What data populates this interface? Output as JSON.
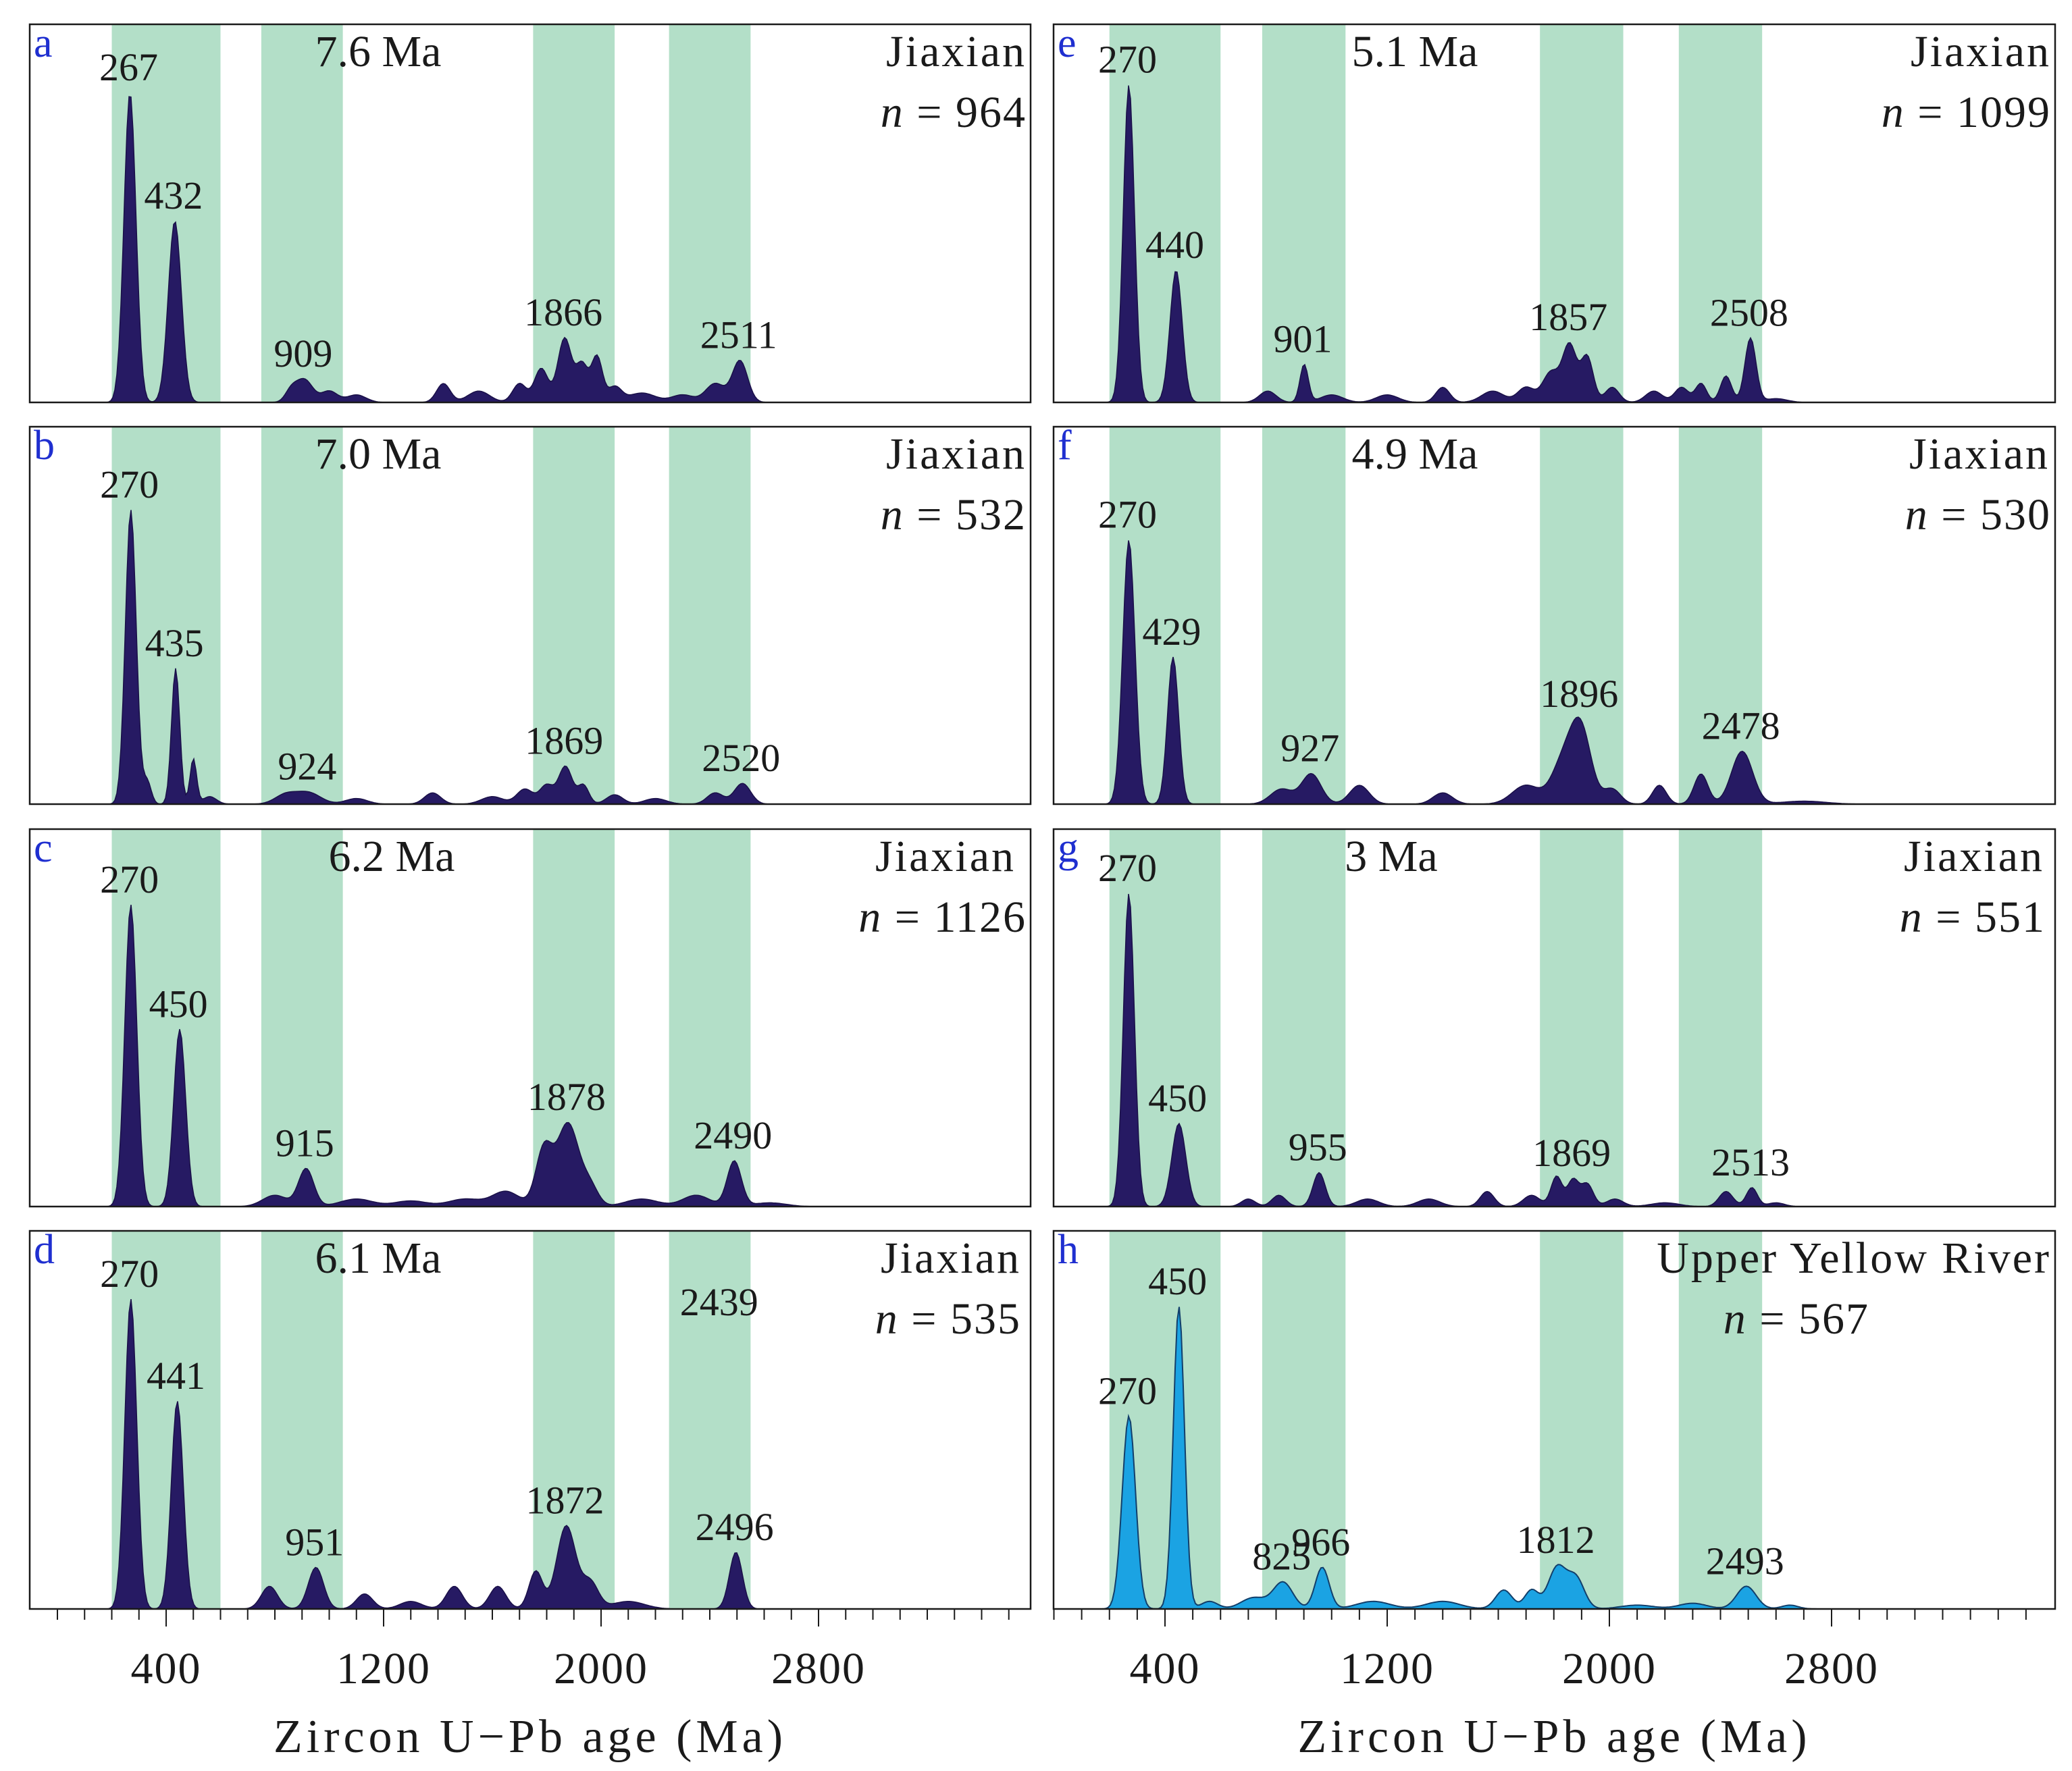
{
  "chart_data": [
    {
      "type": "area",
      "panel": "a",
      "title": "7.6 Ma",
      "site": "Jiaxian",
      "n_label": "n",
      "n_value": "= 964",
      "color": "#261a63",
      "peaks": [
        {
          "age": 267,
          "height": 0.82,
          "width": 22,
          "label": "267"
        },
        {
          "age": 432,
          "height": 0.48,
          "width": 24,
          "label": "432"
        },
        {
          "age": 860,
          "height": 0.03,
          "width": 22
        },
        {
          "age": 909,
          "height": 0.06,
          "width": 30,
          "label": "909"
        },
        {
          "age": 1000,
          "height": 0.03,
          "width": 30
        },
        {
          "age": 1100,
          "height": 0.02,
          "width": 35
        },
        {
          "age": 1420,
          "height": 0.05,
          "width": 25
        },
        {
          "age": 1550,
          "height": 0.03,
          "width": 40
        },
        {
          "age": 1700,
          "height": 0.05,
          "width": 25
        },
        {
          "age": 1780,
          "height": 0.09,
          "width": 25
        },
        {
          "age": 1866,
          "height": 0.17,
          "width": 25,
          "label": "1866"
        },
        {
          "age": 1930,
          "height": 0.1,
          "width": 22
        },
        {
          "age": 1985,
          "height": 0.12,
          "width": 20
        },
        {
          "age": 2050,
          "height": 0.04,
          "width": 25
        },
        {
          "age": 2150,
          "height": 0.025,
          "width": 50
        },
        {
          "age": 2300,
          "height": 0.02,
          "width": 40
        },
        {
          "age": 2420,
          "height": 0.05,
          "width": 35
        },
        {
          "age": 2511,
          "height": 0.11,
          "width": 28,
          "label": "2511"
        }
      ]
    },
    {
      "type": "area",
      "panel": "b",
      "title": "7.0 Ma",
      "site": "Jiaxian",
      "n_label": "n",
      "n_value": "= 532",
      "color": "#261a63",
      "peaks": [
        {
          "age": 270,
          "height": 0.78,
          "width": 20,
          "label": "270"
        },
        {
          "age": 330,
          "height": 0.06,
          "width": 15
        },
        {
          "age": 435,
          "height": 0.36,
          "width": 15,
          "label": "435"
        },
        {
          "age": 500,
          "height": 0.12,
          "width": 12
        },
        {
          "age": 560,
          "height": 0.02,
          "width": 25
        },
        {
          "age": 840,
          "height": 0.025,
          "width": 40
        },
        {
          "age": 924,
          "height": 0.03,
          "width": 45,
          "label": "924"
        },
        {
          "age": 1100,
          "height": 0.015,
          "width": 40
        },
        {
          "age": 1380,
          "height": 0.03,
          "width": 30
        },
        {
          "age": 1600,
          "height": 0.02,
          "width": 40
        },
        {
          "age": 1720,
          "height": 0.04,
          "width": 30
        },
        {
          "age": 1800,
          "height": 0.05,
          "width": 25
        },
        {
          "age": 1869,
          "height": 0.1,
          "width": 25,
          "label": "1869"
        },
        {
          "age": 1935,
          "height": 0.05,
          "width": 20
        },
        {
          "age": 2050,
          "height": 0.025,
          "width": 30
        },
        {
          "age": 2200,
          "height": 0.015,
          "width": 40
        },
        {
          "age": 2420,
          "height": 0.03,
          "width": 30
        },
        {
          "age": 2520,
          "height": 0.055,
          "width": 30,
          "label": "2520"
        }
      ]
    },
    {
      "type": "area",
      "panel": "c",
      "title": "6.2 Ma",
      "site": "Jiaxian",
      "n_label": "n",
      "n_value": "= 1126",
      "color": "#261a63",
      "peaks": [
        {
          "age": 270,
          "height": 0.8,
          "width": 22,
          "label": "270"
        },
        {
          "age": 450,
          "height": 0.47,
          "width": 22,
          "label": "450"
        },
        {
          "age": 800,
          "height": 0.03,
          "width": 45
        },
        {
          "age": 915,
          "height": 0.1,
          "width": 28,
          "label": "915"
        },
        {
          "age": 1100,
          "height": 0.02,
          "width": 60
        },
        {
          "age": 1300,
          "height": 0.015,
          "width": 60
        },
        {
          "age": 1500,
          "height": 0.02,
          "width": 60
        },
        {
          "age": 1650,
          "height": 0.04,
          "width": 50
        },
        {
          "age": 1790,
          "height": 0.15,
          "width": 30
        },
        {
          "age": 1878,
          "height": 0.22,
          "width": 40,
          "label": "1878"
        },
        {
          "age": 1960,
          "height": 0.05,
          "width": 30
        },
        {
          "age": 2150,
          "height": 0.02,
          "width": 60
        },
        {
          "age": 2350,
          "height": 0.03,
          "width": 50
        },
        {
          "age": 2490,
          "height": 0.12,
          "width": 26,
          "label": "2490"
        },
        {
          "age": 2620,
          "height": 0.01,
          "width": 60
        }
      ]
    },
    {
      "type": "area",
      "panel": "d",
      "title": "6.1 Ma",
      "site": "Jiaxian",
      "n_label": "n",
      "n_value": "= 535",
      "color": "#261a63",
      "annotations": [
        "2439"
      ],
      "peaks": [
        {
          "age": 270,
          "height": 0.82,
          "width": 22,
          "label": "270"
        },
        {
          "age": 441,
          "height": 0.55,
          "width": 22,
          "label": "441"
        },
        {
          "age": 780,
          "height": 0.06,
          "width": 30
        },
        {
          "age": 951,
          "height": 0.11,
          "width": 28,
          "label": "951"
        },
        {
          "age": 1130,
          "height": 0.04,
          "width": 30
        },
        {
          "age": 1300,
          "height": 0.02,
          "width": 40
        },
        {
          "age": 1460,
          "height": 0.06,
          "width": 30
        },
        {
          "age": 1620,
          "height": 0.06,
          "width": 30
        },
        {
          "age": 1760,
          "height": 0.1,
          "width": 25
        },
        {
          "age": 1872,
          "height": 0.22,
          "width": 35,
          "label": "1872"
        },
        {
          "age": 1960,
          "height": 0.07,
          "width": 30
        },
        {
          "age": 2100,
          "height": 0.02,
          "width": 60
        },
        {
          "age": 2496,
          "height": 0.15,
          "width": 24,
          "label": "2496"
        }
      ]
    },
    {
      "type": "area",
      "panel": "e",
      "title": "5.1 Ma",
      "site": "Jiaxian",
      "n_label": "n",
      "n_value": "= 1099",
      "color": "#261a63",
      "peaks": [
        {
          "age": 270,
          "height": 0.84,
          "width": 20,
          "label": "270"
        },
        {
          "age": 440,
          "height": 0.35,
          "width": 22,
          "label": "440"
        },
        {
          "age": 770,
          "height": 0.03,
          "width": 30
        },
        {
          "age": 901,
          "height": 0.1,
          "width": 15,
          "label": "901"
        },
        {
          "age": 1000,
          "height": 0.02,
          "width": 40
        },
        {
          "age": 1200,
          "height": 0.02,
          "width": 40
        },
        {
          "age": 1400,
          "height": 0.04,
          "width": 25
        },
        {
          "age": 1580,
          "height": 0.03,
          "width": 40
        },
        {
          "age": 1700,
          "height": 0.04,
          "width": 30
        },
        {
          "age": 1790,
          "height": 0.08,
          "width": 30
        },
        {
          "age": 1857,
          "height": 0.15,
          "width": 25,
          "label": "1857"
        },
        {
          "age": 1920,
          "height": 0.12,
          "width": 22
        },
        {
          "age": 2010,
          "height": 0.04,
          "width": 25
        },
        {
          "age": 2160,
          "height": 0.03,
          "width": 30
        },
        {
          "age": 2260,
          "height": 0.04,
          "width": 25
        },
        {
          "age": 2330,
          "height": 0.05,
          "width": 20
        },
        {
          "age": 2420,
          "height": 0.07,
          "width": 20
        },
        {
          "age": 2508,
          "height": 0.17,
          "width": 20,
          "label": "2508"
        },
        {
          "age": 2600,
          "height": 0.01,
          "width": 40
        }
      ]
    },
    {
      "type": "area",
      "panel": "f",
      "title": "4.9 Ma",
      "site": "Jiaxian",
      "n_label": "n",
      "n_value": "= 530",
      "color": "#261a63",
      "peaks": [
        {
          "age": 270,
          "height": 0.7,
          "width": 22,
          "label": "270"
        },
        {
          "age": 429,
          "height": 0.39,
          "width": 20,
          "label": "429"
        },
        {
          "age": 820,
          "height": 0.04,
          "width": 40
        },
        {
          "age": 927,
          "height": 0.08,
          "width": 35,
          "label": "927"
        },
        {
          "age": 1100,
          "height": 0.05,
          "width": 35
        },
        {
          "age": 1400,
          "height": 0.03,
          "width": 35
        },
        {
          "age": 1700,
          "height": 0.05,
          "width": 50
        },
        {
          "age": 1830,
          "height": 0.1,
          "width": 40
        },
        {
          "age": 1896,
          "height": 0.2,
          "width": 38,
          "label": "1896"
        },
        {
          "age": 2010,
          "height": 0.04,
          "width": 30
        },
        {
          "age": 2180,
          "height": 0.05,
          "width": 25
        },
        {
          "age": 2330,
          "height": 0.08,
          "width": 25
        },
        {
          "age": 2478,
          "height": 0.14,
          "width": 38,
          "label": "2478"
        },
        {
          "age": 2700,
          "height": 0.008,
          "width": 80
        }
      ]
    },
    {
      "type": "area",
      "panel": "g",
      "title": "3 Ma",
      "site": "Jiaxian",
      "n_label": "n",
      "n_value": "= 551",
      "color": "#261a63",
      "peaks": [
        {
          "age": 270,
          "height": 0.83,
          "width": 20,
          "label": "270"
        },
        {
          "age": 450,
          "height": 0.22,
          "width": 25,
          "label": "450"
        },
        {
          "age": 700,
          "height": 0.02,
          "width": 25
        },
        {
          "age": 810,
          "height": 0.03,
          "width": 25
        },
        {
          "age": 955,
          "height": 0.09,
          "width": 22,
          "label": "955"
        },
        {
          "age": 1130,
          "height": 0.02,
          "width": 40
        },
        {
          "age": 1350,
          "height": 0.02,
          "width": 40
        },
        {
          "age": 1560,
          "height": 0.04,
          "width": 25
        },
        {
          "age": 1720,
          "height": 0.03,
          "width": 30
        },
        {
          "age": 1810,
          "height": 0.08,
          "width": 20
        },
        {
          "age": 1869,
          "height": 0.07,
          "width": 20,
          "label": "1869"
        },
        {
          "age": 1920,
          "height": 0.06,
          "width": 22
        },
        {
          "age": 2020,
          "height": 0.02,
          "width": 30
        },
        {
          "age": 2200,
          "height": 0.01,
          "width": 50
        },
        {
          "age": 2420,
          "height": 0.04,
          "width": 25
        },
        {
          "age": 2513,
          "height": 0.05,
          "width": 20,
          "label": "2513"
        },
        {
          "age": 2600,
          "height": 0.01,
          "width": 30
        }
      ]
    },
    {
      "type": "area",
      "panel": "h",
      "title": "",
      "site": "Upper Yellow River",
      "n_label": "n",
      "n_value": "= 567",
      "color": "#1ba3e3",
      "peaks": [
        {
          "age": 270,
          "height": 0.51,
          "width": 24,
          "label": "270"
        },
        {
          "age": 450,
          "height": 0.8,
          "width": 20,
          "label": "450"
        },
        {
          "age": 560,
          "height": 0.02,
          "width": 30
        },
        {
          "age": 720,
          "height": 0.03,
          "width": 45
        },
        {
          "age": 825,
          "height": 0.07,
          "width": 35,
          "label": "825"
        },
        {
          "age": 966,
          "height": 0.11,
          "width": 25,
          "label": "966"
        },
        {
          "age": 1150,
          "height": 0.02,
          "width": 60
        },
        {
          "age": 1400,
          "height": 0.02,
          "width": 60
        },
        {
          "age": 1620,
          "height": 0.05,
          "width": 30
        },
        {
          "age": 1720,
          "height": 0.05,
          "width": 25
        },
        {
          "age": 1812,
          "height": 0.11,
          "width": 32,
          "label": "1812"
        },
        {
          "age": 1880,
          "height": 0.08,
          "width": 30
        },
        {
          "age": 2100,
          "height": 0.01,
          "width": 60
        },
        {
          "age": 2300,
          "height": 0.015,
          "width": 50
        },
        {
          "age": 2493,
          "height": 0.06,
          "width": 35,
          "label": "2493"
        },
        {
          "age": 2650,
          "height": 0.01,
          "width": 30
        }
      ]
    }
  ],
  "axes": {
    "xlim": [
      0,
      3500
    ],
    "ticks": [
      400,
      1200,
      2000,
      2800
    ],
    "tick_labels": [
      "400",
      "1200",
      "2000",
      "2800"
    ],
    "minor_step": 100,
    "xlabel": "Zircon  U−Pb age  (Ma)"
  },
  "shaded_ranges": [
    [
      200,
      400
    ],
    [
      400,
      600
    ],
    [
      750,
      1050
    ],
    [
      1750,
      2050
    ],
    [
      2250,
      2550
    ]
  ],
  "colors": {
    "dark_kde": "#261a63",
    "light_kde": "#1ba3e3",
    "band": "#b3dfc8",
    "panel_letter": "#1f2fd0"
  }
}
